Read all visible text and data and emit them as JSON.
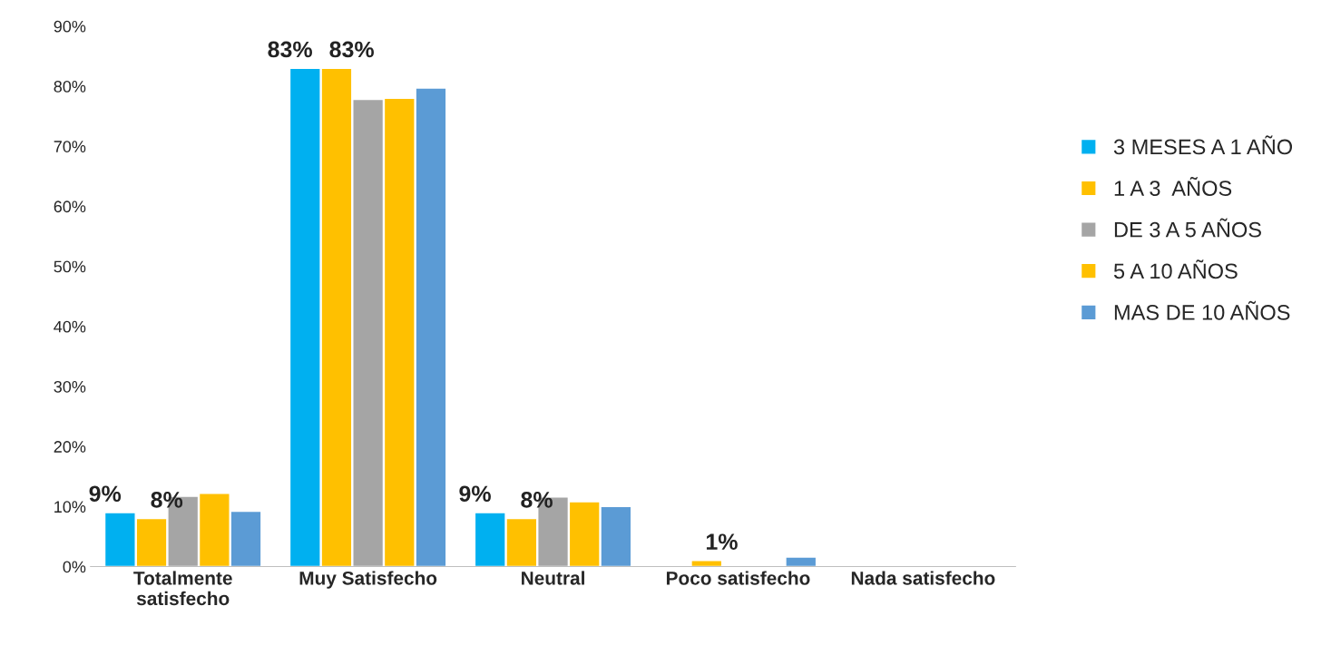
{
  "chart_data": {
    "type": "bar",
    "categories": [
      "Totalmente\nsatisfecho",
      "Muy Satisfecho",
      "Neutral",
      "Poco satisfecho",
      "Nada satisfecho"
    ],
    "series": [
      {
        "name": "3 MESES A 1 AÑO",
        "color": "#00b0f0",
        "values": [
          9,
          83,
          9,
          null,
          null
        ],
        "value_labels": [
          "9%",
          "83%",
          "9%",
          null,
          null
        ]
      },
      {
        "name": "1 A 3  AÑOS",
        "color": "#ffc000",
        "values": [
          8,
          83,
          8,
          1,
          null
        ],
        "value_labels": [
          "8%",
          "83%",
          "8%",
          "1%",
          null
        ]
      },
      {
        "name": "DE 3 A 5 AÑOS",
        "color": "#a5a5a5",
        "values": [
          11.7,
          77.8,
          11.6,
          null,
          null
        ]
      },
      {
        "name": "5 A 10 AÑOS",
        "color": "#ffc000",
        "values": [
          12.2,
          78.0,
          10.8,
          null,
          null
        ]
      },
      {
        "name": "MAS DE 10 AÑOS",
        "color": "#5b9bd5",
        "values": [
          9.2,
          79.7,
          10.0,
          1.6,
          null
        ]
      }
    ],
    "ylim": [
      0,
      90
    ],
    "yticks": [
      {
        "value": 0,
        "label": "0%"
      },
      {
        "value": 10,
        "label": "10%"
      },
      {
        "value": 20,
        "label": "20%"
      },
      {
        "value": 30,
        "label": "30%"
      },
      {
        "value": 40,
        "label": "40%"
      },
      {
        "value": 50,
        "label": "50%"
      },
      {
        "value": 60,
        "label": "60%"
      },
      {
        "value": 70,
        "label": "70%"
      },
      {
        "value": 80,
        "label": "80%"
      },
      {
        "value": 90,
        "label": "90%"
      }
    ],
    "grid": false,
    "legend": "right"
  }
}
